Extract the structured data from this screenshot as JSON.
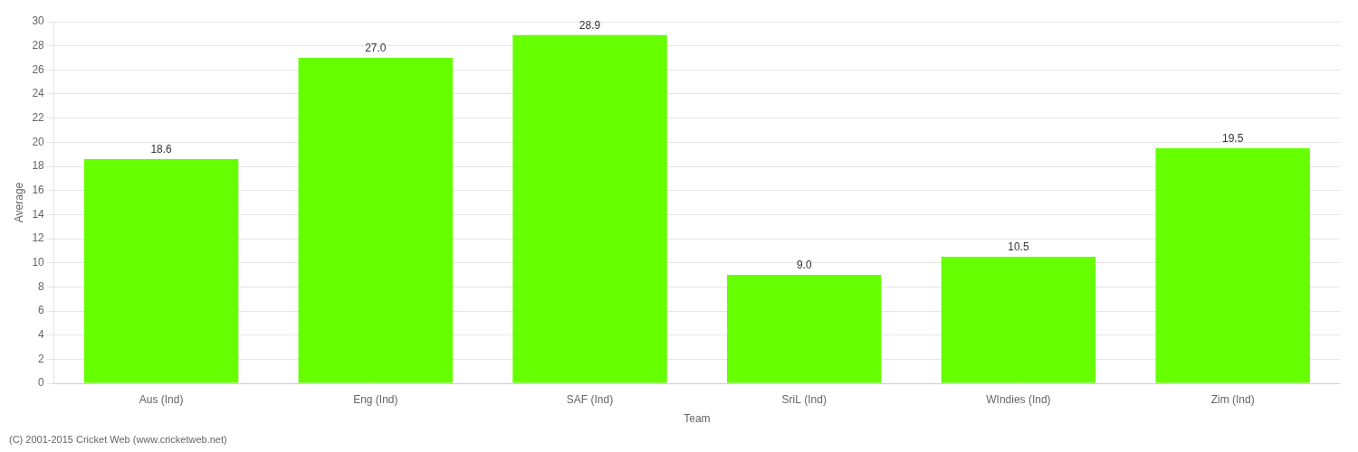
{
  "chart_data": {
    "type": "bar",
    "categories": [
      "Aus (Ind)",
      "Eng (Ind)",
      "SAF (Ind)",
      "SriL (Ind)",
      "WIndies (Ind)",
      "Zim (Ind)"
    ],
    "values": [
      18.6,
      27.0,
      28.9,
      9.0,
      10.5,
      19.5
    ],
    "value_labels": [
      "18.6",
      "27.0",
      "28.9",
      "9.0",
      "10.5",
      "19.5"
    ],
    "data_labels": true,
    "color": "#66ff00",
    "xlabel": "Team",
    "ylabel": "Average",
    "ylim": [
      0,
      30
    ],
    "yticks": [
      0,
      2,
      4,
      6,
      8,
      10,
      12,
      14,
      16,
      18,
      20,
      22,
      24,
      26,
      28,
      30
    ],
    "grid": true,
    "annotations": [
      "(C) 2001-2015 Cricket Web (www.cricketweb.net)"
    ]
  }
}
